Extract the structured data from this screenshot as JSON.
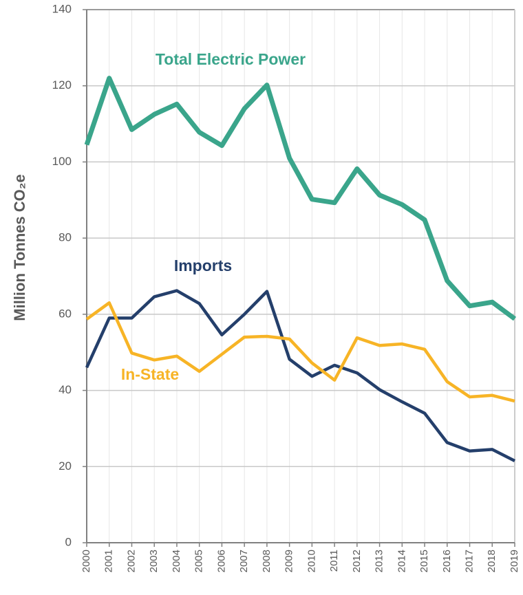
{
  "chart_data": {
    "type": "line",
    "y_label": "Million Tonnes CO₂e",
    "categories": [
      "2000",
      "2001",
      "2002",
      "2003",
      "2004",
      "2005",
      "2006",
      "2007",
      "2008",
      "2009",
      "2010",
      "2011",
      "2012",
      "2013",
      "2014",
      "2015",
      "2016",
      "2017",
      "2018",
      "2019"
    ],
    "series": [
      {
        "name": "Total Electric Power",
        "color": "#3aa58b",
        "values": [
          104.5,
          122,
          108.5,
          112.5,
          115.2,
          107.8,
          104.3,
          114,
          120.2,
          101,
          90.2,
          89.3,
          98.2,
          91.3,
          88.8,
          84.8,
          68.8,
          62.2,
          63.2,
          58.8
        ]
      },
      {
        "name": "Imports",
        "color": "#243f6b",
        "values": [
          46,
          59,
          59,
          64.6,
          66.2,
          62.8,
          54.6,
          60,
          66,
          48.2,
          43.7,
          46.6,
          44.6,
          40.2,
          37,
          34,
          26.3,
          24.1,
          24.5,
          21.5
        ]
      },
      {
        "name": "In-State",
        "color": "#f7b426",
        "values": [
          58.7,
          63,
          49.8,
          48,
          49,
          45,
          49.5,
          54,
          54.2,
          53.5,
          47.2,
          42.7,
          53.8,
          51.8,
          52.2,
          50.8,
          42.3,
          38.3,
          38.7,
          37.2
        ]
      }
    ],
    "ylim": [
      0,
      140
    ],
    "yticks": [
      0,
      20,
      40,
      60,
      80,
      100,
      120,
      140
    ],
    "grid": true
  }
}
